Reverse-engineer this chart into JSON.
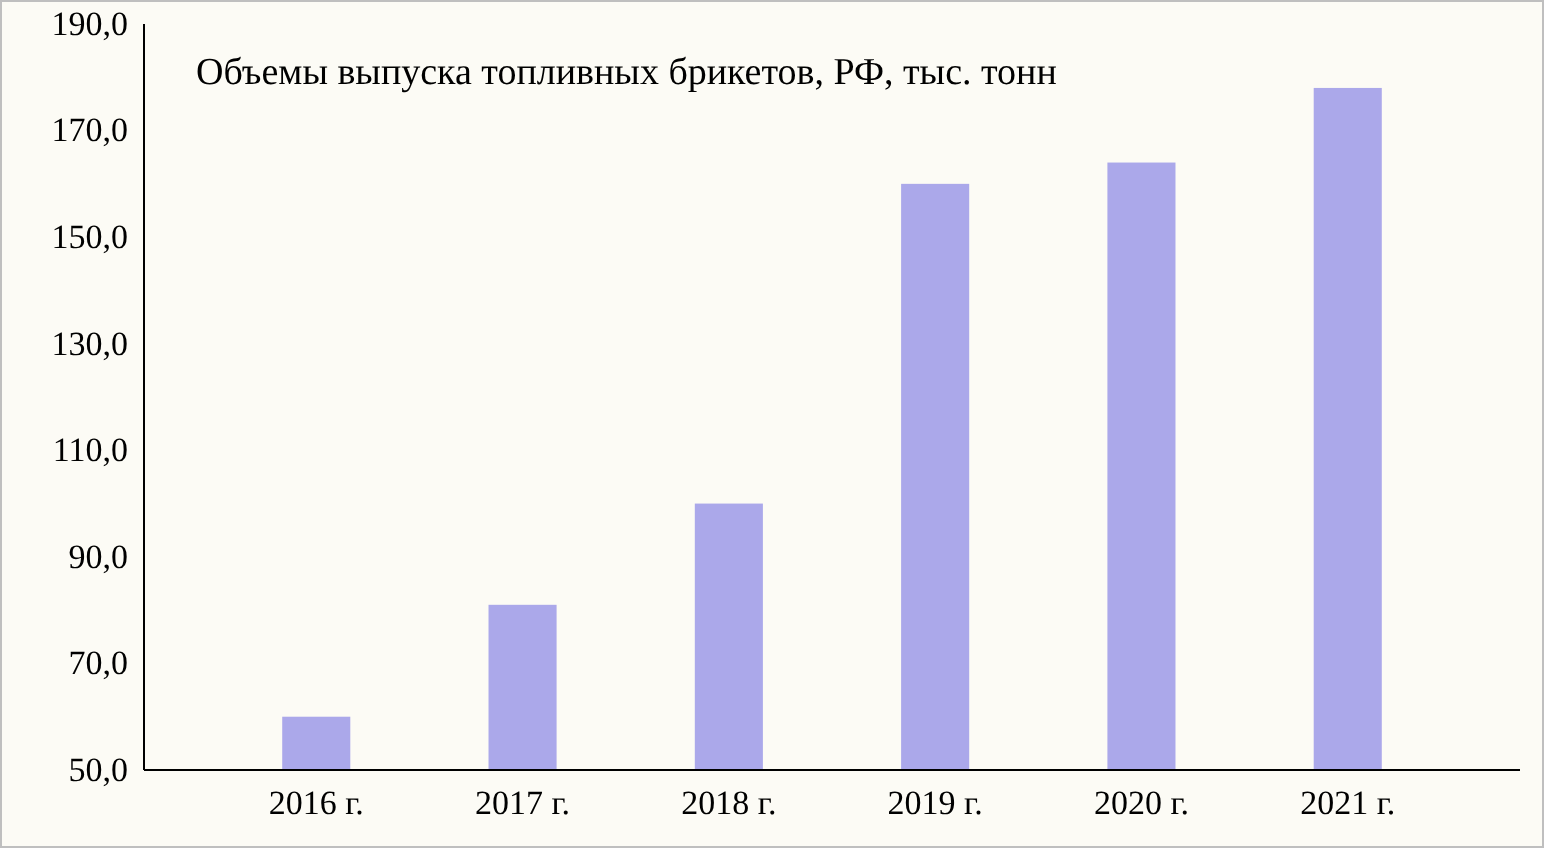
{
  "chart_data": {
    "type": "bar",
    "title": "Объемы выпуска топливных брикетов, РФ, тыс. тонн",
    "categories": [
      "2016 г.",
      "2017 г.",
      "2018 г.",
      "2019 г.",
      "2020 г.",
      "2021 г."
    ],
    "values": [
      60,
      81,
      100,
      160,
      164,
      178
    ],
    "color": "#aba8ea",
    "ylim": [
      50,
      190
    ],
    "yticks": [
      {
        "value": 50,
        "label": "50,0"
      },
      {
        "value": 70,
        "label": "70,0"
      },
      {
        "value": 90,
        "label": "90,0"
      },
      {
        "value": 110,
        "label": "110,0"
      },
      {
        "value": 130,
        "label": "130,0"
      },
      {
        "value": 150,
        "label": "150,0"
      },
      {
        "value": 170,
        "label": "170,0"
      },
      {
        "value": 190,
        "label": "190,0"
      }
    ],
    "grid": false
  }
}
